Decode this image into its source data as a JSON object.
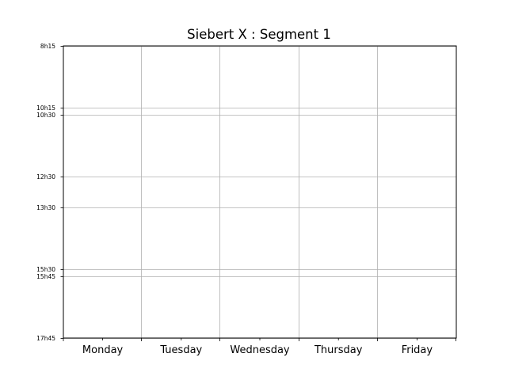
{
  "chart_data": {
    "type": "table",
    "title": "Siebert X : Segment 1",
    "xlabel": "",
    "ylabel": "",
    "categories": [
      "Monday",
      "Tuesday",
      "Wednesday",
      "Thursday",
      "Friday"
    ],
    "y_ticks": [
      {
        "label": "8h15",
        "minutes": 495
      },
      {
        "label": "10h15",
        "minutes": 615
      },
      {
        "label": "10h30",
        "minutes": 630
      },
      {
        "label": "12h30",
        "minutes": 750
      },
      {
        "label": "13h30",
        "minutes": 810
      },
      {
        "label": "15h30",
        "minutes": 930
      },
      {
        "label": "15h45",
        "minutes": 945
      },
      {
        "label": "17h45",
        "minutes": 1065
      }
    ],
    "ylim": [
      495,
      1065
    ],
    "y_inverted": true,
    "grid": true,
    "series": []
  }
}
